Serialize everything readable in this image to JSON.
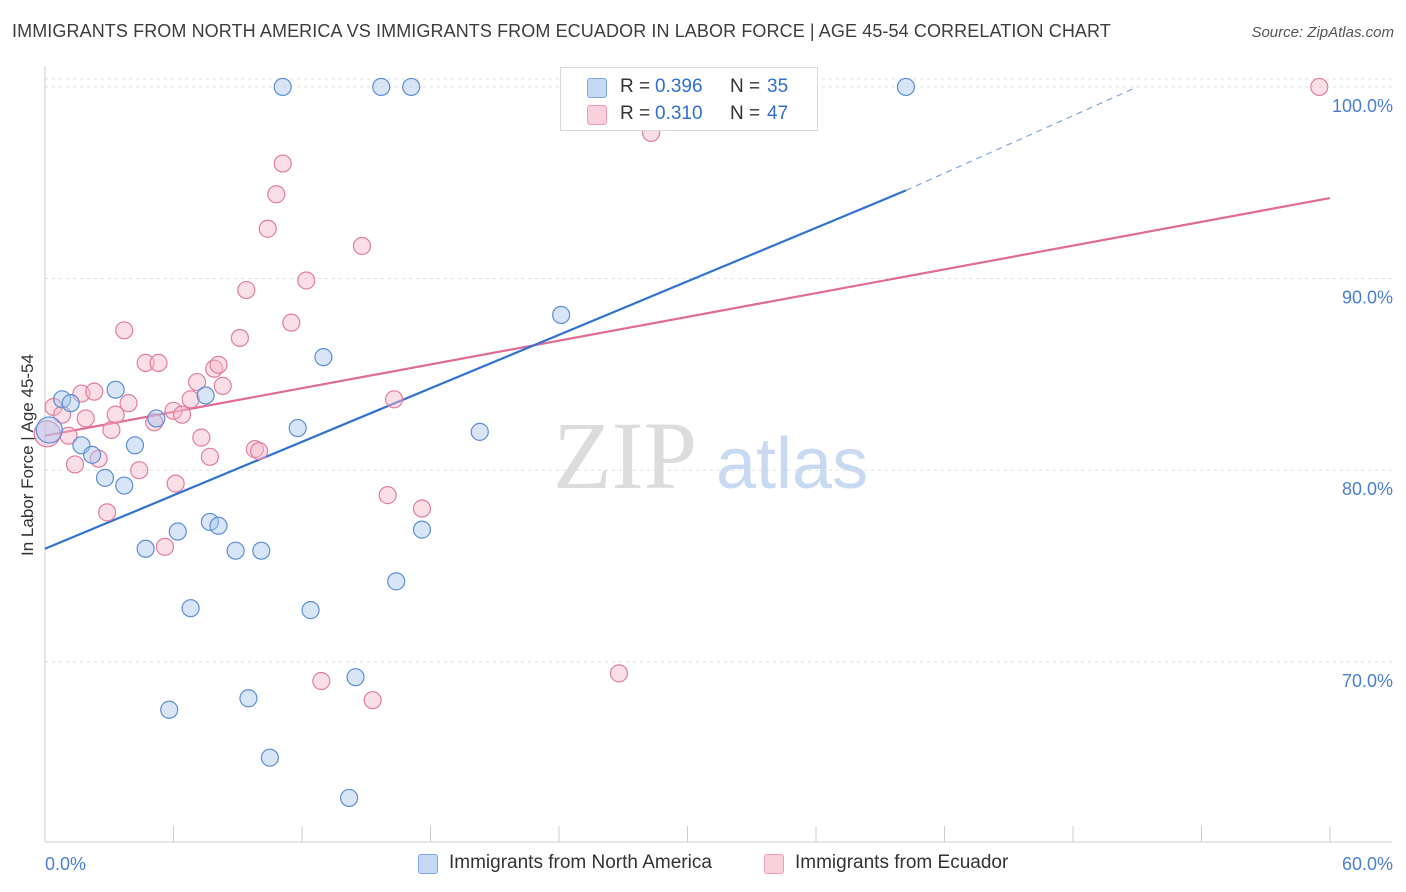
{
  "title": "IMMIGRANTS FROM NORTH AMERICA VS IMMIGRANTS FROM ECUADOR IN LABOR FORCE | AGE 45-54 CORRELATION CHART",
  "source": "Source: ZipAtlas.com",
  "watermark": {
    "zip": "ZIP",
    "atlas": "atlas"
  },
  "legend": {
    "rows": [
      {
        "r_label": "R =",
        "r_value": "0.396",
        "n_label": "N =",
        "n_value": "35",
        "color": "#a9c6ee"
      },
      {
        "r_label": "R =",
        "r_value": "0.310",
        "n_label": "N =",
        "n_value": "47",
        "color": "#f6b7ca"
      }
    ]
  },
  "bottom_legend": {
    "north_america": "Immigrants from North America",
    "ecuador": "Immigrants from Ecuador"
  },
  "chart_data": {
    "type": "scatter",
    "title": "IMMIGRANTS FROM NORTH AMERICA VS IMMIGRANTS FROM ECUADOR IN LABOR FORCE | AGE 45-54 CORRELATION CHART",
    "xlabel": "",
    "ylabel": "In Labor Force | Age 45-54",
    "xlim": [
      0,
      60
    ],
    "ylim": [
      60.6,
      101.3
    ],
    "x_tick_labels": [
      "0.0%",
      "60.0%"
    ],
    "y_ticks": [
      {
        "value": 70,
        "label": "70.0%"
      },
      {
        "value": 80,
        "label": "80.0%"
      },
      {
        "value": 90,
        "label": "90.0%"
      },
      {
        "value": 100,
        "label": "100.0%"
      }
    ],
    "grid": "horizontal dashed",
    "legend_position": "top-center",
    "series": [
      {
        "name": "Immigrants from North America",
        "color": "#a9c6ee",
        "stroke": "#5a8fd6",
        "points": [
          [
            0.2,
            82.1
          ],
          [
            0.8,
            83.7
          ],
          [
            1.2,
            83.5
          ],
          [
            1.7,
            81.3
          ],
          [
            2.2,
            80.8
          ],
          [
            2.8,
            79.6
          ],
          [
            3.3,
            84.2
          ],
          [
            3.7,
            79.2
          ],
          [
            4.2,
            81.3
          ],
          [
            4.7,
            75.9
          ],
          [
            5.2,
            82.7
          ],
          [
            5.8,
            67.5
          ],
          [
            6.2,
            76.8
          ],
          [
            6.8,
            72.8
          ],
          [
            7.5,
            83.9
          ],
          [
            7.7,
            77.3
          ],
          [
            8.1,
            77.1
          ],
          [
            8.9,
            75.8
          ],
          [
            9.5,
            68.1
          ],
          [
            10.1,
            75.8
          ],
          [
            10.5,
            65.0
          ],
          [
            11.1,
            100.0
          ],
          [
            11.8,
            82.2
          ],
          [
            12.4,
            72.7
          ],
          [
            13.0,
            85.9
          ],
          [
            14.2,
            62.9
          ],
          [
            14.5,
            69.2
          ],
          [
            15.7,
            100.0
          ],
          [
            16.4,
            74.2
          ],
          [
            17.1,
            100.0
          ],
          [
            17.6,
            76.9
          ],
          [
            20.3,
            82.0
          ],
          [
            24.1,
            88.1
          ],
          [
            40.2,
            100.0
          ],
          [
            28.0,
            100.3
          ]
        ],
        "trend": {
          "x": [
            0,
            40.2
          ],
          "y": [
            75.9,
            94.6
          ],
          "dashed_to": [
            51.0,
            100.0
          ]
        }
      },
      {
        "name": "Immigrants from Ecuador",
        "color": "#f6b7ca",
        "stroke": "#e27d9e",
        "points": [
          [
            0.4,
            83.3
          ],
          [
            0.8,
            82.9
          ],
          [
            1.1,
            81.8
          ],
          [
            1.4,
            80.3
          ],
          [
            1.7,
            84.0
          ],
          [
            1.9,
            82.7
          ],
          [
            2.3,
            84.1
          ],
          [
            2.5,
            80.6
          ],
          [
            2.9,
            77.8
          ],
          [
            3.1,
            82.1
          ],
          [
            3.3,
            82.9
          ],
          [
            3.7,
            87.3
          ],
          [
            3.9,
            83.5
          ],
          [
            4.4,
            80.0
          ],
          [
            4.7,
            85.6
          ],
          [
            5.1,
            82.5
          ],
          [
            5.3,
            85.6
          ],
          [
            5.6,
            76.0
          ],
          [
            6.0,
            83.1
          ],
          [
            6.1,
            79.3
          ],
          [
            6.4,
            82.9
          ],
          [
            6.8,
            83.7
          ],
          [
            7.1,
            84.6
          ],
          [
            7.3,
            81.7
          ],
          [
            7.7,
            80.7
          ],
          [
            7.9,
            85.3
          ],
          [
            8.1,
            85.5
          ],
          [
            8.3,
            84.4
          ],
          [
            9.1,
            86.9
          ],
          [
            9.4,
            89.4
          ],
          [
            9.8,
            81.1
          ],
          [
            10.0,
            81.0
          ],
          [
            10.4,
            92.6
          ],
          [
            10.8,
            94.4
          ],
          [
            11.1,
            96.0
          ],
          [
            11.5,
            87.7
          ],
          [
            12.2,
            89.9
          ],
          [
            12.9,
            69.0
          ],
          [
            14.8,
            91.7
          ],
          [
            15.3,
            68.0
          ],
          [
            16.0,
            78.7
          ],
          [
            16.3,
            83.7
          ],
          [
            17.6,
            78.0
          ],
          [
            26.8,
            69.4
          ],
          [
            28.3,
            97.6
          ],
          [
            59.5,
            100.0
          ],
          [
            0.1,
            81.9
          ]
        ],
        "trend": {
          "x": [
            0,
            60
          ],
          "y": [
            81.8,
            94.2
          ]
        }
      }
    ]
  }
}
